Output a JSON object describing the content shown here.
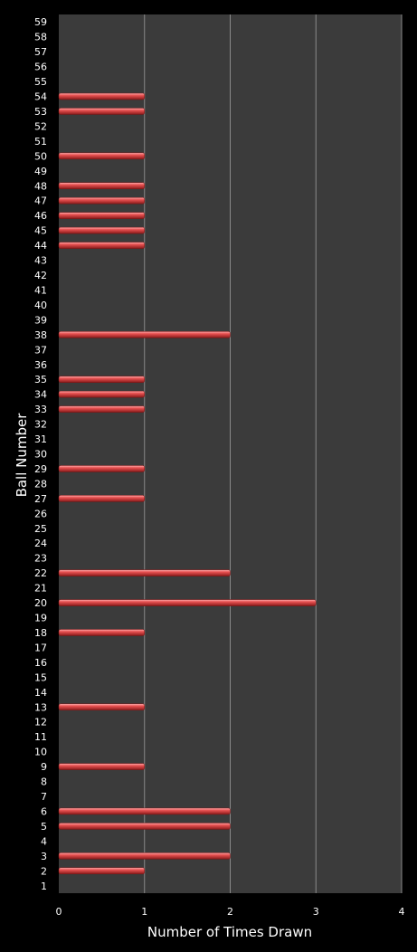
{
  "chart_data": {
    "type": "bar",
    "orientation": "horizontal",
    "xlabel": "Number of Times Drawn",
    "ylabel": "Ball Number",
    "xlim": [
      0,
      4
    ],
    "xticks": [
      "0",
      "1",
      "2",
      "3",
      "4"
    ],
    "grid": "vertical",
    "categories": [
      "1",
      "2",
      "3",
      "4",
      "5",
      "6",
      "7",
      "8",
      "9",
      "10",
      "11",
      "12",
      "13",
      "14",
      "15",
      "16",
      "17",
      "18",
      "19",
      "20",
      "21",
      "22",
      "23",
      "24",
      "25",
      "26",
      "27",
      "28",
      "29",
      "30",
      "31",
      "32",
      "33",
      "34",
      "35",
      "36",
      "37",
      "38",
      "39",
      "40",
      "41",
      "42",
      "43",
      "44",
      "45",
      "46",
      "47",
      "48",
      "49",
      "50",
      "51",
      "52",
      "53",
      "54",
      "55",
      "56",
      "57",
      "58",
      "59"
    ],
    "values": [
      0,
      1,
      2,
      0,
      2,
      2,
      0,
      0,
      1,
      0,
      0,
      0,
      1,
      0,
      0,
      0,
      0,
      1,
      0,
      3,
      0,
      2,
      0,
      0,
      0,
      0,
      1,
      0,
      1,
      0,
      0,
      0,
      1,
      1,
      1,
      0,
      0,
      2,
      0,
      0,
      0,
      0,
      0,
      1,
      1,
      1,
      1,
      1,
      0,
      1,
      0,
      0,
      1,
      1,
      0,
      0,
      0,
      0,
      0
    ],
    "colors": {
      "background": "#000000",
      "plot_area": "#3b3b3b",
      "gridline": "#8a8a8a",
      "bar": "#e04646",
      "bar_highlight": "#ff9a9a",
      "bar_shadow": "#7a1414"
    }
  }
}
